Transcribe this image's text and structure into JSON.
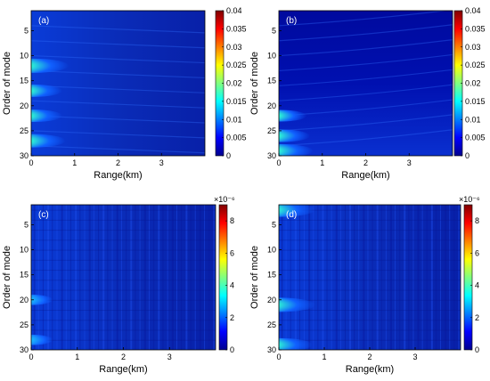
{
  "chart_data": [
    {
      "type": "heatmap",
      "panel_label": "(a)",
      "xlabel": "Range(km)",
      "ylabel": "Order of mode",
      "xlim": [
        0,
        4
      ],
      "ylim": [
        30,
        1
      ],
      "xticks": [
        "0",
        "1",
        "2",
        "3"
      ],
      "yticks": [
        "5",
        "10",
        "15",
        "20",
        "25",
        "30"
      ],
      "colorbar": {
        "min": 0,
        "max": 0.04,
        "ticks": [
          "0",
          "0.005",
          "0.01",
          "0.015",
          "0.02",
          "0.025",
          "0.03",
          "0.035",
          "0.04"
        ],
        "exponent": ""
      },
      "hotspots": [
        {
          "mode": 12,
          "range": 0.05,
          "value": 0.04
        },
        {
          "mode": 17,
          "range": 0.05,
          "value": 0.03
        },
        {
          "mode": 22,
          "range": 0.05,
          "value": 0.03
        },
        {
          "mode": 27,
          "range": 0.05,
          "value": 0.035
        }
      ]
    },
    {
      "type": "heatmap",
      "panel_label": "(b)",
      "xlabel": "Range(km)",
      "ylabel": "Order of mode",
      "xlim": [
        0,
        4
      ],
      "ylim": [
        30,
        1
      ],
      "xticks": [
        "0",
        "1",
        "2",
        "3"
      ],
      "yticks": [
        "5",
        "10",
        "15",
        "20",
        "25",
        "30"
      ],
      "colorbar": {
        "min": 0,
        "max": 0.04,
        "ticks": [
          "0",
          "0.005",
          "0.01",
          "0.015",
          "0.02",
          "0.025",
          "0.03",
          "0.035",
          "0.04"
        ],
        "exponent": ""
      },
      "hotspots": [
        {
          "mode": 22,
          "range": 0.05,
          "value": 0.025
        },
        {
          "mode": 26,
          "range": 0.05,
          "value": 0.03
        },
        {
          "mode": 29,
          "range": 0.05,
          "value": 0.035
        }
      ]
    },
    {
      "type": "heatmap",
      "panel_label": "(c)",
      "xlabel": "Range(km)",
      "ylabel": "Order of mode",
      "xlim": [
        0,
        4
      ],
      "ylim": [
        30,
        1
      ],
      "xticks": [
        "0",
        "1",
        "2",
        "3"
      ],
      "yticks": [
        "5",
        "10",
        "15",
        "20",
        "25",
        "30"
      ],
      "colorbar": {
        "min": 0,
        "max": 9,
        "ticks": [
          "0",
          "2",
          "4",
          "6",
          "8"
        ],
        "exponent": "×10⁻⁶"
      },
      "hotspots": [
        {
          "mode": 20,
          "range": 0.02,
          "value": 4
        },
        {
          "mode": 28,
          "range": 0.02,
          "value": 4
        }
      ]
    },
    {
      "type": "heatmap",
      "panel_label": "(d)",
      "xlabel": "Range(km)",
      "ylabel": "Order of mode",
      "xlim": [
        0,
        4
      ],
      "ylim": [
        30,
        1
      ],
      "xticks": [
        "0",
        "1",
        "2",
        "3"
      ],
      "yticks": [
        "5",
        "10",
        "15",
        "20",
        "25",
        "30"
      ],
      "colorbar": {
        "min": 0,
        "max": 9,
        "ticks": [
          "0",
          "2",
          "4",
          "6",
          "8"
        ],
        "exponent": "×10⁻⁶"
      },
      "hotspots": [
        {
          "mode": 2,
          "range": 0.02,
          "value": 9
        },
        {
          "mode": 21,
          "range": 0.02,
          "value": 9
        },
        {
          "mode": 29,
          "range": 0.02,
          "value": 8
        }
      ]
    }
  ]
}
